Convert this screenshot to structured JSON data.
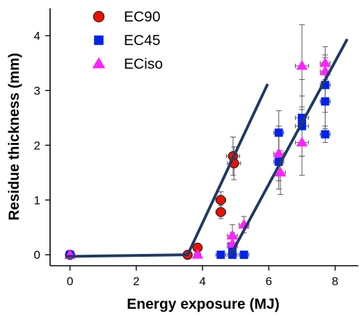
{
  "chart_data": {
    "type": "scatter",
    "title": "",
    "xlabel": "Energy exposure (MJ)",
    "ylabel": "Residue thickness (mm)",
    "xlim": [
      -0.6,
      8.7
    ],
    "ylim": [
      -0.2,
      4.5
    ],
    "xticks": [
      0,
      2,
      4,
      6,
      8
    ],
    "yticks": [
      0,
      1,
      2,
      3,
      4
    ],
    "legend_position": "top-left",
    "series": [
      {
        "name": "EC90",
        "marker": "circle",
        "color": "#ee1100",
        "points": [
          {
            "x": 0,
            "y": 0,
            "xerr": 0,
            "yerr": 0
          },
          {
            "x": 3.55,
            "y": 0.0,
            "xerr": 0.1,
            "yerr": 0.03
          },
          {
            "x": 3.85,
            "y": 0.13,
            "xerr": 0.12,
            "yerr": 0.05
          },
          {
            "x": 4.55,
            "y": 1.0,
            "xerr": 0.15,
            "yerr": 0.15
          },
          {
            "x": 4.55,
            "y": 0.78,
            "xerr": 0.15,
            "yerr": 0.12
          },
          {
            "x": 4.92,
            "y": 1.8,
            "xerr": 0.2,
            "yerr": 0.35
          },
          {
            "x": 4.95,
            "y": 1.67,
            "xerr": 0.2,
            "yerr": 0.3
          }
        ]
      },
      {
        "name": "EC45",
        "marker": "square",
        "color": "#0022ee",
        "points": [
          {
            "x": 0,
            "y": 0,
            "xerr": 0,
            "yerr": 0
          },
          {
            "x": 4.55,
            "y": 0.0,
            "xerr": 0.15,
            "yerr": 0.05
          },
          {
            "x": 4.9,
            "y": 0.0,
            "xerr": 0.15,
            "yerr": 0.05
          },
          {
            "x": 5.25,
            "y": 0.0,
            "xerr": 0.15,
            "yerr": 0.05
          },
          {
            "x": 4.9,
            "y": 0.15,
            "xerr": 0.15,
            "yerr": 0.2
          },
          {
            "x": 6.3,
            "y": 2.23,
            "xerr": 0.15,
            "yerr": 0.4
          },
          {
            "x": 6.3,
            "y": 1.7,
            "xerr": 0.15,
            "yerr": 0.5
          },
          {
            "x": 7.0,
            "y": 2.5,
            "xerr": 0.2,
            "yerr": 0.7
          },
          {
            "x": 7.0,
            "y": 2.35,
            "xerr": 0.2,
            "yerr": 0.55
          },
          {
            "x": 7.7,
            "y": 3.1,
            "xerr": 0.15,
            "yerr": 0.5
          },
          {
            "x": 7.7,
            "y": 2.8,
            "xerr": 0.15,
            "yerr": 0.5
          },
          {
            "x": 7.7,
            "y": 2.2,
            "xerr": 0.15,
            "yerr": 0.15
          }
        ]
      },
      {
        "name": "ECiso",
        "marker": "triangle",
        "color": "#ff22ff",
        "points": [
          {
            "x": 0,
            "y": 0,
            "xerr": 0,
            "yerr": 0
          },
          {
            "x": 3.85,
            "y": 0.0,
            "xerr": 0.1,
            "yerr": 0.03
          },
          {
            "x": 4.9,
            "y": 0.35,
            "xerr": 0.15,
            "yerr": 0.2
          },
          {
            "x": 4.9,
            "y": 0.2,
            "xerr": 0.15,
            "yerr": 0.2
          },
          {
            "x": 5.25,
            "y": 0.55,
            "xerr": 0.15,
            "yerr": 0.15
          },
          {
            "x": 6.3,
            "y": 1.85,
            "xerr": 0.15,
            "yerr": 0.5
          },
          {
            "x": 6.35,
            "y": 1.5,
            "xerr": 0.15,
            "yerr": 0.4
          },
          {
            "x": 7.0,
            "y": 3.45,
            "xerr": 0.2,
            "yerr": 0.75
          },
          {
            "x": 7.0,
            "y": 2.05,
            "xerr": 0.2,
            "yerr": 0.6
          },
          {
            "x": 7.7,
            "y": 3.5,
            "xerr": 0.15,
            "yerr": 0.3
          },
          {
            "x": 7.7,
            "y": 3.35,
            "xerr": 0.15,
            "yerr": 0.3
          }
        ]
      }
    ],
    "fit_lines": [
      {
        "color": "#1f3a63",
        "points": [
          [
            -0.1,
            -0.03
          ],
          [
            3.5,
            0.0
          ]
        ]
      },
      {
        "color": "#1f3a63",
        "points": [
          [
            3.55,
            0.0
          ],
          [
            5.95,
            3.1
          ]
        ]
      },
      {
        "color": "#1f3a63",
        "points": [
          [
            4.85,
            0.0
          ],
          [
            8.35,
            3.92
          ]
        ]
      }
    ]
  }
}
